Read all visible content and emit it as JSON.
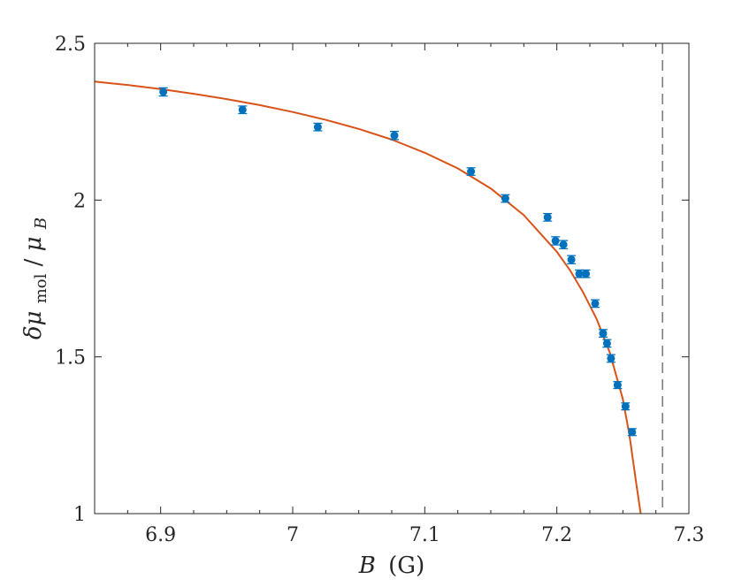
{
  "chart_data": {
    "type": "scatter",
    "title": "",
    "xlabel": {
      "symbol": "B",
      "unit": "(G)"
    },
    "ylabel": {
      "prefix": "δμ",
      "sub": "mol",
      "slash": "/",
      "denom": "μ",
      "denom_sub": "B"
    },
    "xlim": [
      6.85,
      7.3
    ],
    "ylim": [
      1.0,
      2.5
    ],
    "x_ticks": [
      6.9,
      7.0,
      7.1,
      7.2,
      7.3
    ],
    "x_tick_labels": [
      "6.9",
      "7",
      "7.1",
      "7.2",
      "7.3"
    ],
    "x_minor_ticks": [
      6.85,
      6.875,
      6.925,
      6.95,
      6.975,
      7.025,
      7.05,
      7.075,
      7.125,
      7.15,
      7.175,
      7.225,
      7.25,
      7.275
    ],
    "y_ticks": [
      1.0,
      1.5,
      2.0,
      2.5
    ],
    "y_tick_labels": [
      "1",
      "1.5",
      "2",
      "2.5"
    ],
    "grid": false,
    "series": [
      {
        "kind": "points_with_error",
        "color": "#0072BD",
        "points": [
          {
            "x": 6.902,
            "y": 2.345,
            "err": 0.013
          },
          {
            "x": 6.962,
            "y": 2.288,
            "err": 0.012
          },
          {
            "x": 7.019,
            "y": 2.233,
            "err": 0.012
          },
          {
            "x": 7.077,
            "y": 2.206,
            "err": 0.013
          },
          {
            "x": 7.135,
            "y": 2.091,
            "err": 0.012
          },
          {
            "x": 7.161,
            "y": 2.005,
            "err": 0.012
          },
          {
            "x": 7.193,
            "y": 1.945,
            "err": 0.012
          },
          {
            "x": 7.199,
            "y": 1.87,
            "err": 0.013
          },
          {
            "x": 7.205,
            "y": 1.858,
            "err": 0.013
          },
          {
            "x": 7.211,
            "y": 1.81,
            "err": 0.013
          },
          {
            "x": 7.217,
            "y": 1.765,
            "err": 0.012
          },
          {
            "x": 7.222,
            "y": 1.765,
            "err": 0.012
          },
          {
            "x": 7.229,
            "y": 1.67,
            "err": 0.012
          },
          {
            "x": 7.235,
            "y": 1.575,
            "err": 0.012
          },
          {
            "x": 7.238,
            "y": 1.543,
            "err": 0.012
          },
          {
            "x": 7.241,
            "y": 1.495,
            "err": 0.012
          },
          {
            "x": 7.246,
            "y": 1.41,
            "err": 0.011
          },
          {
            "x": 7.252,
            "y": 1.342,
            "err": 0.011
          },
          {
            "x": 7.257,
            "y": 1.26,
            "err": 0.011
          }
        ]
      },
      {
        "kind": "fit_curve",
        "color": "#D95319",
        "x": [
          6.85,
          6.875,
          6.9,
          6.925,
          6.95,
          6.975,
          7.0,
          7.025,
          7.05,
          7.075,
          7.1,
          7.125,
          7.15,
          7.175,
          7.2,
          7.21,
          7.22,
          7.23,
          7.24,
          7.25,
          7.255,
          7.26,
          7.2635
        ],
        "y": [
          2.378,
          2.367,
          2.354,
          2.339,
          2.322,
          2.303,
          2.281,
          2.256,
          2.227,
          2.193,
          2.151,
          2.101,
          2.037,
          1.952,
          1.835,
          1.776,
          1.705,
          1.622,
          1.515,
          1.365,
          1.25,
          1.1,
          1.0
        ]
      },
      {
        "kind": "vertical_reference_line",
        "color": "#555555",
        "style": "dashed",
        "x": 7.28
      }
    ]
  }
}
